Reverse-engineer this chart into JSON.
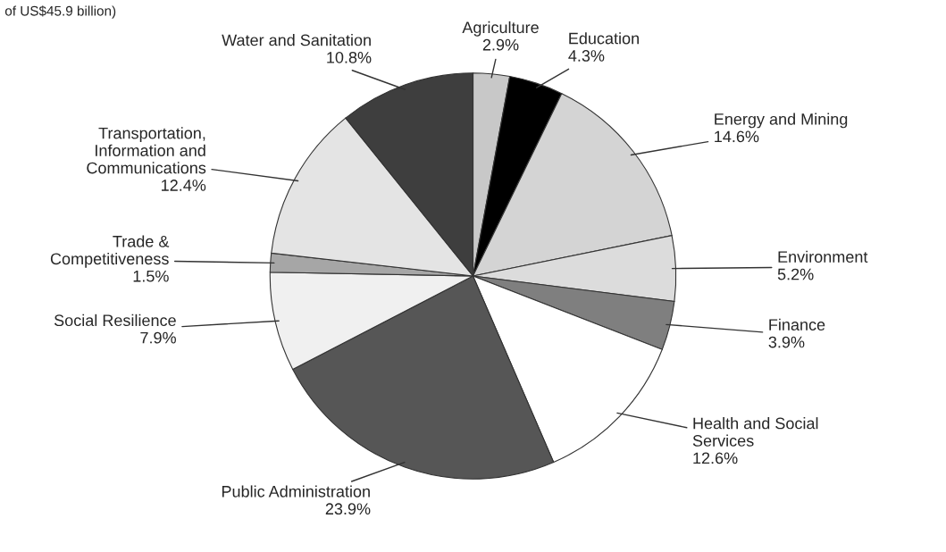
{
  "chart_data": {
    "type": "pie",
    "subtitle": "of US$45.9 billion)",
    "categories": [
      "Agriculture",
      "Education",
      "Energy and Mining",
      "Environment",
      "Finance",
      "Health and Social\nServices",
      "Public Administration",
      "Social Resilience",
      "Trade &\nCompetitiveness",
      "Transportation,\nInformation and\nCommunications",
      "Water and Sanitation"
    ],
    "values": [
      2.9,
      4.3,
      14.6,
      5.2,
      3.9,
      12.6,
      23.9,
      7.9,
      1.5,
      12.4,
      10.8
    ],
    "value_labels": [
      "2.9%",
      "4.3%",
      "14.6%",
      "5.2%",
      "3.9%",
      "12.6%",
      "23.9%",
      "7.9%",
      "1.5%",
      "12.4%",
      "10.8%"
    ],
    "colors": [
      "#c8c8c8",
      "#000000",
      "#d4d4d4",
      "#dcdcdc",
      "#7f7f7f",
      "#ffffff",
      "#565656",
      "#f0f0f0",
      "#a6a6a6",
      "#e4e4e4",
      "#3e3e3e"
    ],
    "legend": false
  }
}
